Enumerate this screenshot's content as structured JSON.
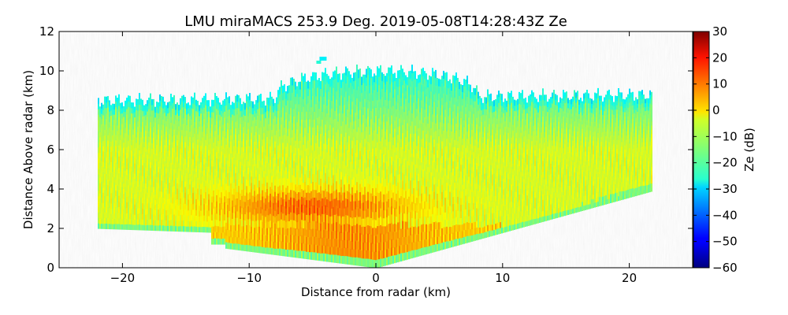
{
  "chart_data": {
    "type": "heatmap",
    "title": "LMU miraMACS 253.9 Deg. 2019-05-08T14:28:43Z  Ze",
    "xlabel": "Distance from radar (km)",
    "ylabel": "Distance Above radar  (km)",
    "xlim": [
      -25,
      25
    ],
    "ylim": [
      0,
      12
    ],
    "xticks": [
      -20,
      -10,
      0,
      10,
      20
    ],
    "xtick_labels": [
      "−20",
      "−10",
      "0",
      "10",
      "20"
    ],
    "yticks": [
      0,
      2,
      4,
      6,
      8,
      10,
      12
    ],
    "ytick_labels": [
      "0",
      "2",
      "4",
      "6",
      "8",
      "10",
      "12"
    ],
    "grid": false,
    "colorbar": {
      "label": "Ze (dB)",
      "colormap": "jet",
      "range": [
        -60,
        30
      ],
      "ticks": [
        30,
        20,
        10,
        0,
        -10,
        -20,
        -30,
        -40,
        -50,
        -60
      ],
      "tick_labels": [
        "30",
        "20",
        "10",
        "0",
        "−10",
        "−20",
        "−30",
        "−40",
        "−50",
        "−60"
      ]
    },
    "field": {
      "x_extent": [
        -22,
        21.8
      ],
      "top_height_left": 8.5,
      "top_height_right": 8.8,
      "top_height_bump": {
        "x_range": [
          -8,
          8
        ],
        "height": 10.0
      },
      "isolated_echo_top": {
        "x": -4.2,
        "y": 10.6
      },
      "bottom_height_left": 2.0,
      "bottom_height_right": 3.9,
      "bottom_height_at_radar": 0.0,
      "region_values_db": [
        {
          "region": "upper edge",
          "ze": -27
        },
        {
          "region": "upper layer (6-8 km)",
          "ze": -15
        },
        {
          "region": "middle layer (4-6 km)",
          "ze": -7
        },
        {
          "region": "core (2.5-4 km, x -12 to 2)",
          "ze": 10
        },
        {
          "region": "lower layer (0.5-2 km)",
          "ze": 0
        },
        {
          "region": "near-surface fringe",
          "ze": -25
        }
      ]
    }
  }
}
